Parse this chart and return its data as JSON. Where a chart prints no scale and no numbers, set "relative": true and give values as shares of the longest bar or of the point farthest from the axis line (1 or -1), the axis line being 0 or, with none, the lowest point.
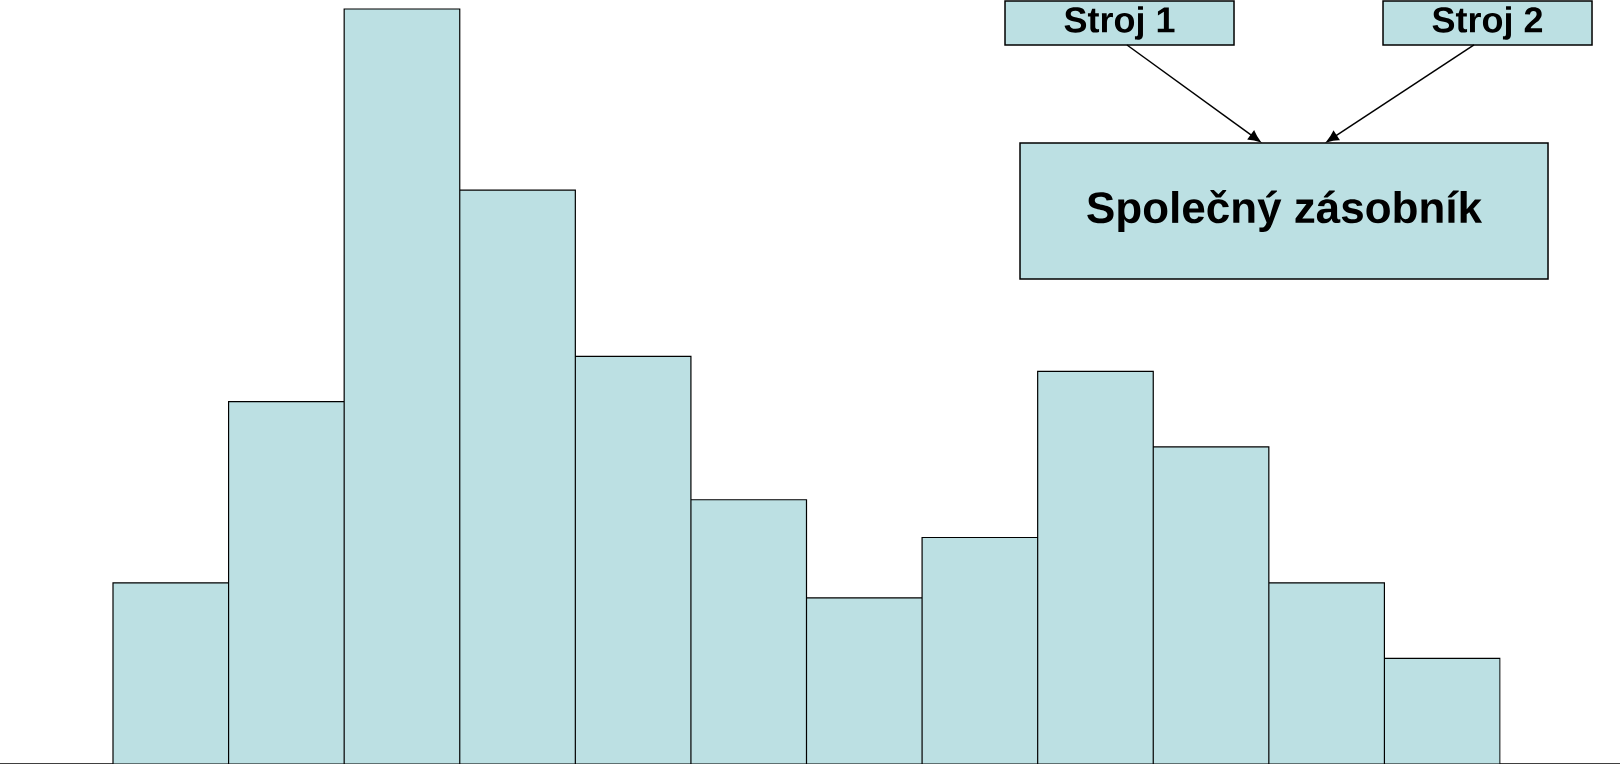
{
  "chart_data": {
    "type": "bar",
    "relative": true,
    "categories": [
      null,
      null,
      null,
      null,
      null,
      null,
      null,
      null,
      null,
      null,
      null,
      null
    ],
    "values": [
      0.24,
      0.48,
      1,
      0.76,
      0.54,
      0.35,
      0.22,
      0.3,
      0.52,
      0.42,
      0.24,
      0.14
    ],
    "color": "#bce0e3",
    "annotations": [
      "Stroj 1",
      "Stroj 2",
      "Společný zásobník"
    ]
  }
}
